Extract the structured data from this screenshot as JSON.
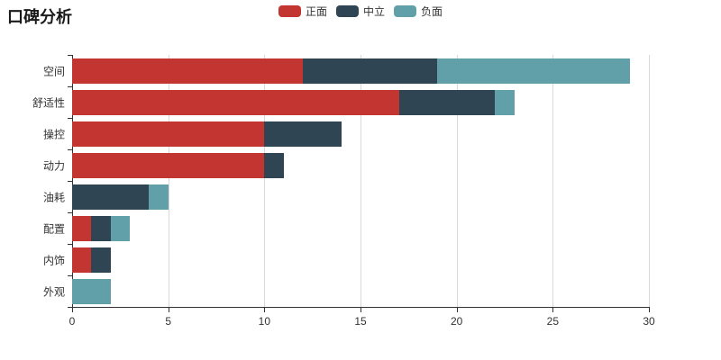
{
  "title": "口碑分析",
  "legend": {
    "items": [
      {
        "label": "正面",
        "color": "#c23531"
      },
      {
        "label": "中立",
        "color": "#2f4554"
      },
      {
        "label": "负面",
        "color": "#61a0a8"
      }
    ]
  },
  "chart_data": {
    "type": "bar",
    "orientation": "horizontal",
    "stacked": true,
    "title": "口碑分析",
    "categories": [
      "空间",
      "舒适性",
      "操控",
      "动力",
      "油耗",
      "配置",
      "内饰",
      "外观"
    ],
    "series": [
      {
        "name": "正面",
        "color": "#c23531",
        "values": [
          12,
          17,
          10,
          10,
          0,
          1,
          1,
          0
        ]
      },
      {
        "name": "中立",
        "color": "#2f4554",
        "values": [
          7,
          5,
          4,
          1,
          4,
          1,
          1,
          0
        ]
      },
      {
        "name": "负面",
        "color": "#61a0a8",
        "values": [
          10,
          1,
          0,
          0,
          1,
          1,
          0,
          2
        ]
      }
    ],
    "totals": [
      29,
      23,
      14,
      11,
      5,
      3,
      2,
      2
    ],
    "xlabel": "",
    "ylabel": "",
    "xlim": [
      0,
      30
    ],
    "x_ticks": [
      0,
      5,
      10,
      15,
      20,
      25,
      30
    ],
    "grid": true,
    "legend_position": "top-center"
  },
  "colors": {
    "background": "#ffffff",
    "axis": "#333333",
    "grid": "#d8d8de",
    "text": "#333333",
    "title_text": "#1a1a1a"
  }
}
